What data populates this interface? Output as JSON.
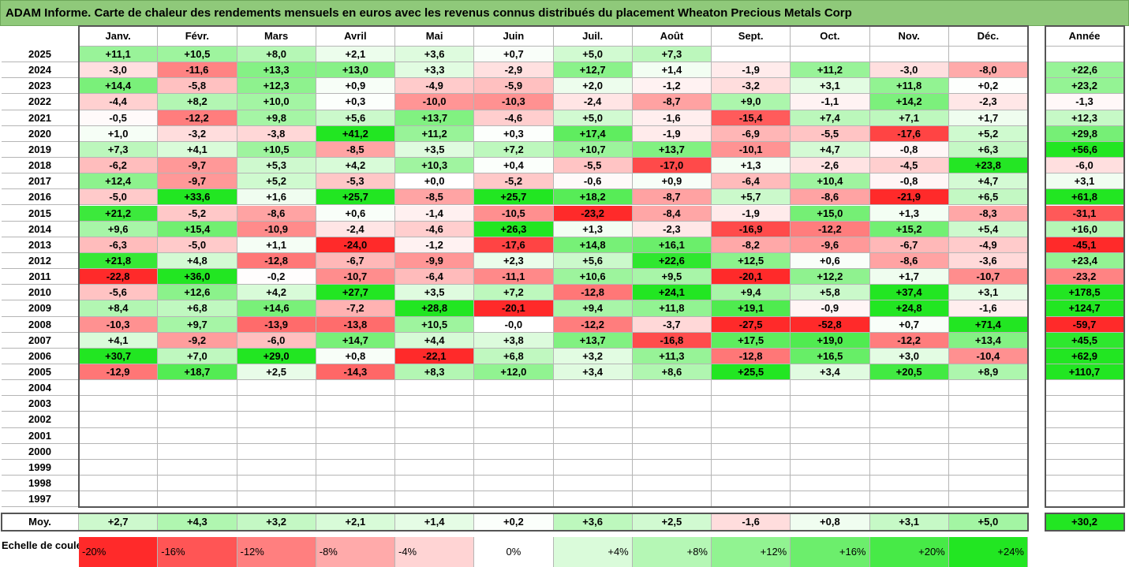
{
  "title": "ADAM Informe. Carte de chaleur des rendements mensuels en euros avec les revenus connus distribués du placement Wheaton Precious Metals Corp",
  "colors": {
    "strong_red": "#ff2a2a",
    "strong_green": "#22e622",
    "neutral": "#ffffff",
    "title_bg": "#8fc97a"
  },
  "chart_data": {
    "type": "heatmap",
    "months": [
      "Janv.",
      "Févr.",
      "Mars",
      "Avril",
      "Mai",
      "Juin",
      "Juil.",
      "Août",
      "Sept.",
      "Oct.",
      "Nov.",
      "Déc."
    ],
    "year_header": "Année",
    "rows": [
      {
        "year": "2025",
        "values": [
          "+11,1",
          "+10,5",
          "+8,0",
          "+2,1",
          "+3,6",
          "+0,7",
          "+5,0",
          "+7,3",
          "",
          "",
          "",
          ""
        ],
        "annual": ""
      },
      {
        "year": "2024",
        "values": [
          "-3,0",
          "-11,6",
          "+13,3",
          "+13,0",
          "+3,3",
          "-2,9",
          "+12,7",
          "+1,4",
          "-1,9",
          "+11,2",
          "-3,0",
          "-8,0"
        ],
        "annual": "+22,6"
      },
      {
        "year": "2023",
        "values": [
          "+14,4",
          "-5,8",
          "+12,3",
          "+0,9",
          "-4,9",
          "-5,9",
          "+2,0",
          "-1,2",
          "-3,2",
          "+3,1",
          "+11,8",
          "+0,2"
        ],
        "annual": "+23,2"
      },
      {
        "year": "2022",
        "values": [
          "-4,4",
          "+8,2",
          "+10,0",
          "+0,3",
          "-10,0",
          "-10,3",
          "-2,4",
          "-8,7",
          "+9,0",
          "-1,1",
          "+14,2",
          "-2,3"
        ],
        "annual": "-1,3"
      },
      {
        "year": "2021",
        "values": [
          "-0,5",
          "-12,2",
          "+9,8",
          "+5,6",
          "+13,7",
          "-4,6",
          "+5,0",
          "-1,6",
          "-15,4",
          "+7,4",
          "+7,1",
          "+1,7"
        ],
        "annual": "+12,3"
      },
      {
        "year": "2020",
        "values": [
          "+1,0",
          "-3,2",
          "-3,8",
          "+41,2",
          "+11,2",
          "+0,3",
          "+17,4",
          "-1,9",
          "-6,9",
          "-5,5",
          "-17,6",
          "+5,2"
        ],
        "annual": "+29,8"
      },
      {
        "year": "2019",
        "values": [
          "+7,3",
          "+4,1",
          "+10,5",
          "-8,5",
          "+3,5",
          "+7,2",
          "+10,7",
          "+13,7",
          "-10,1",
          "+4,7",
          "-0,8",
          "+6,3"
        ],
        "annual": "+56,6"
      },
      {
        "year": "2018",
        "values": [
          "-6,2",
          "-9,7",
          "+5,3",
          "+4,2",
          "+10,3",
          "+0,4",
          "-5,5",
          "-17,0",
          "+1,3",
          "-2,6",
          "-4,5",
          "+23,8"
        ],
        "annual": "-6,0"
      },
      {
        "year": "2017",
        "values": [
          "+12,4",
          "-9,7",
          "+5,2",
          "-5,3",
          "+0,0",
          "-5,2",
          "-0,6",
          "+0,9",
          "-6,4",
          "+10,4",
          "-0,8",
          "+4,7"
        ],
        "annual": "+3,1"
      },
      {
        "year": "2016",
        "values": [
          "-5,0",
          "+33,6",
          "+1,6",
          "+25,7",
          "-8,5",
          "+25,7",
          "+18,2",
          "-8,7",
          "+5,7",
          "-8,6",
          "-21,9",
          "+6,5"
        ],
        "annual": "+61,8"
      },
      {
        "year": "2015",
        "values": [
          "+21,2",
          "-5,2",
          "-8,6",
          "+0,6",
          "-1,4",
          "-10,5",
          "-23,2",
          "-8,4",
          "-1,9",
          "+15,0",
          "+1,3",
          "-8,3"
        ],
        "annual": "-31,1"
      },
      {
        "year": "2014",
        "values": [
          "+9,6",
          "+15,4",
          "-10,9",
          "-2,4",
          "-4,6",
          "+26,3",
          "+1,3",
          "-2,3",
          "-16,9",
          "-12,2",
          "+15,2",
          "+5,4"
        ],
        "annual": "+16,0"
      },
      {
        "year": "2013",
        "values": [
          "-6,3",
          "-5,0",
          "+1,1",
          "-24,0",
          "-1,2",
          "-17,6",
          "+14,8",
          "+16,1",
          "-8,2",
          "-9,6",
          "-6,7",
          "-4,9"
        ],
        "annual": "-45,1"
      },
      {
        "year": "2012",
        "values": [
          "+21,8",
          "+4,8",
          "-12,8",
          "-6,7",
          "-9,9",
          "+2,3",
          "+5,6",
          "+22,6",
          "+12,5",
          "+0,6",
          "-8,6",
          "-3,6"
        ],
        "annual": "+23,4"
      },
      {
        "year": "2011",
        "values": [
          "-22,8",
          "+36,0",
          "-0,2",
          "-10,7",
          "-6,4",
          "-11,1",
          "+10,6",
          "+9,5",
          "-20,1",
          "+12,2",
          "+1,7",
          "-10,7"
        ],
        "annual": "-23,2"
      },
      {
        "year": "2010",
        "values": [
          "-5,6",
          "+12,6",
          "+4,2",
          "+27,7",
          "+3,5",
          "+7,2",
          "-12,8",
          "+24,1",
          "+9,4",
          "+5,8",
          "+37,4",
          "+3,1"
        ],
        "annual": "+178,5"
      },
      {
        "year": "2009",
        "values": [
          "+8,4",
          "+6,8",
          "+14,6",
          "-7,2",
          "+28,8",
          "-20,1",
          "+9,4",
          "+11,8",
          "+19,1",
          "-0,9",
          "+24,8",
          "-1,6"
        ],
        "annual": "+124,7"
      },
      {
        "year": "2008",
        "values": [
          "-10,3",
          "+9,7",
          "-13,9",
          "-13,8",
          "+10,5",
          "-0,0",
          "-12,2",
          "-3,7",
          "-27,5",
          "-52,8",
          "+0,7",
          "+71,4"
        ],
        "annual": "-59,7"
      },
      {
        "year": "2007",
        "values": [
          "+4,1",
          "-9,2",
          "-6,0",
          "+14,7",
          "+4,4",
          "+3,8",
          "+13,7",
          "-16,8",
          "+17,5",
          "+19,0",
          "-12,2",
          "+13,4"
        ],
        "annual": "+45,5"
      },
      {
        "year": "2006",
        "values": [
          "+30,7",
          "+7,0",
          "+29,0",
          "+0,8",
          "-22,1",
          "+6,8",
          "+3,2",
          "+11,3",
          "-12,8",
          "+16,5",
          "+3,0",
          "-10,4"
        ],
        "annual": "+62,9"
      },
      {
        "year": "2005",
        "values": [
          "-12,9",
          "+18,7",
          "+2,5",
          "-14,3",
          "+8,3",
          "+12,0",
          "+3,4",
          "+8,6",
          "+25,5",
          "+3,4",
          "+20,5",
          "+8,9"
        ],
        "annual": "+110,7"
      },
      {
        "year": "2004",
        "values": [
          "",
          "",
          "",
          "",
          "",
          "",
          "",
          "",
          "",
          "",
          "",
          ""
        ],
        "annual": ""
      },
      {
        "year": "2003",
        "values": [
          "",
          "",
          "",
          "",
          "",
          "",
          "",
          "",
          "",
          "",
          "",
          ""
        ],
        "annual": ""
      },
      {
        "year": "2002",
        "values": [
          "",
          "",
          "",
          "",
          "",
          "",
          "",
          "",
          "",
          "",
          "",
          ""
        ],
        "annual": ""
      },
      {
        "year": "2001",
        "values": [
          "",
          "",
          "",
          "",
          "",
          "",
          "",
          "",
          "",
          "",
          "",
          ""
        ],
        "annual": ""
      },
      {
        "year": "2000",
        "values": [
          "",
          "",
          "",
          "",
          "",
          "",
          "",
          "",
          "",
          "",
          "",
          ""
        ],
        "annual": ""
      },
      {
        "year": "1999",
        "values": [
          "",
          "",
          "",
          "",
          "",
          "",
          "",
          "",
          "",
          "",
          "",
          ""
        ],
        "annual": ""
      },
      {
        "year": "1998",
        "values": [
          "",
          "",
          "",
          "",
          "",
          "",
          "",
          "",
          "",
          "",
          "",
          ""
        ],
        "annual": ""
      },
      {
        "year": "1997",
        "values": [
          "",
          "",
          "",
          "",
          "",
          "",
          "",
          "",
          "",
          "",
          "",
          ""
        ],
        "annual": ""
      }
    ],
    "average": {
      "label": "Moy.",
      "values": [
        "+2,7",
        "+4,3",
        "+3,2",
        "+2,1",
        "+1,4",
        "+0,2",
        "+3,6",
        "+2,5",
        "-1,6",
        "+0,8",
        "+3,1",
        "+5,0"
      ],
      "annual": "+30,2"
    },
    "color_scale": {
      "label": "Echelle de couleur",
      "steps": [
        "-20%",
        "-16%",
        "-12%",
        "-8%",
        "-4%",
        "0%",
        "+4%",
        "+8%",
        "+12%",
        "+16%",
        "+20%",
        "+24%"
      ],
      "min": -20,
      "max": 24
    }
  }
}
